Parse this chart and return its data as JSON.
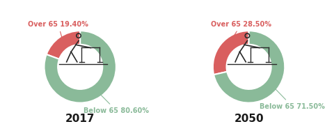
{
  "charts": [
    {
      "year": "2017",
      "over65_pct": 19.4,
      "below65_pct": 80.6,
      "over65_label": "Over 65 19.40%",
      "below65_label": "Below 65 80.60%"
    },
    {
      "year": "2050",
      "over65_pct": 28.5,
      "below65_pct": 71.5,
      "over65_label": "Over 65 28.50%",
      "below65_label": "Below 65 71.50%"
    }
  ],
  "color_over65": "#d95f5f",
  "color_below65": "#8aba99",
  "color_background": "#ffffff",
  "year_fontsize": 11,
  "label_fontsize": 7.0,
  "donut_width": 0.38
}
